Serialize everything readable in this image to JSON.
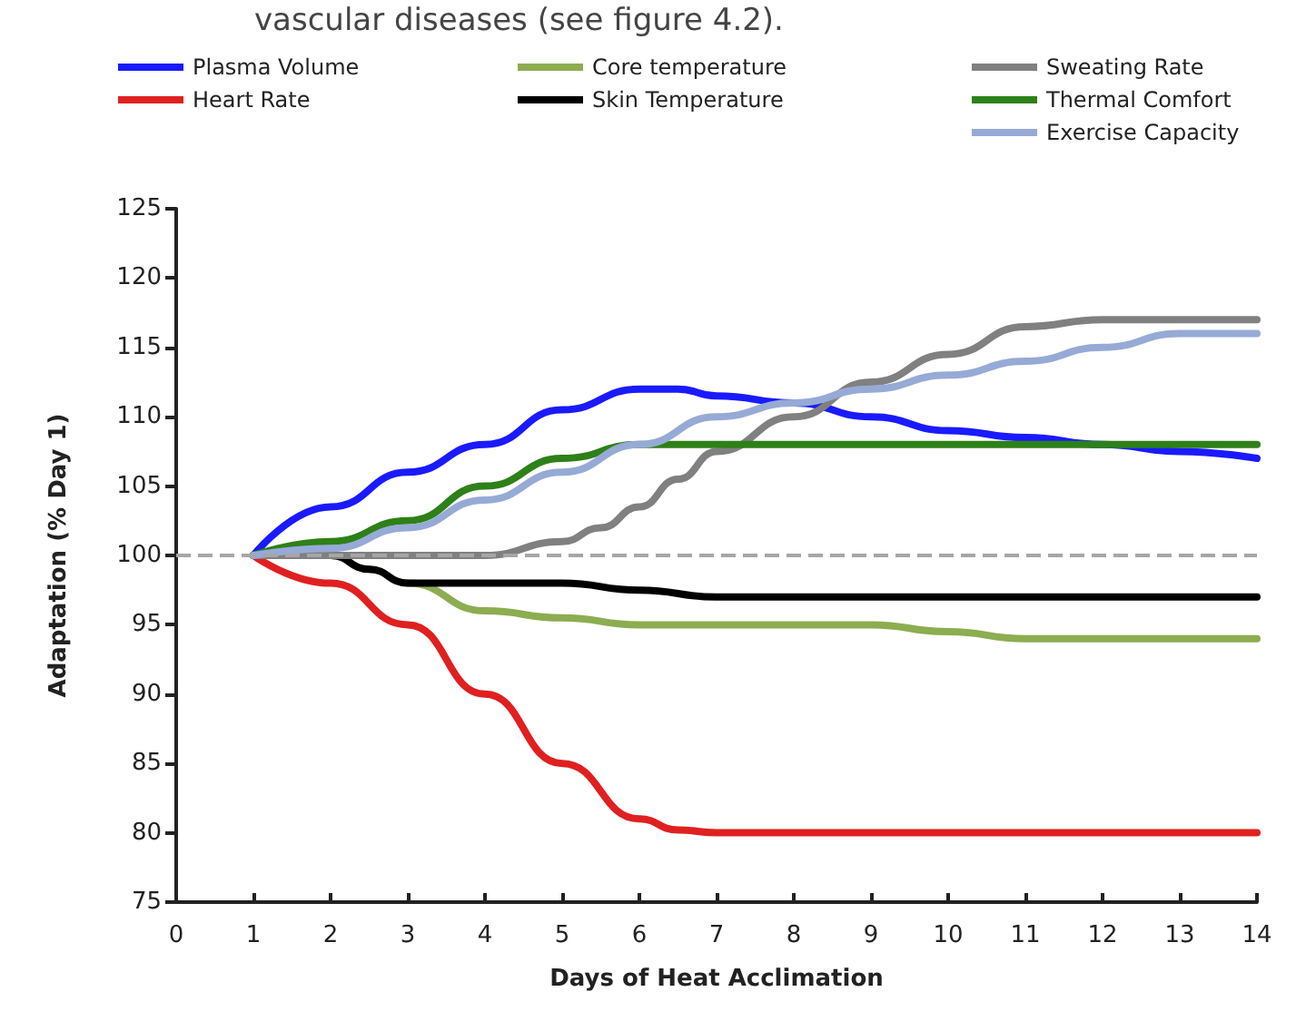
{
  "chart_data": {
    "type": "line",
    "xlabel": "Days of Heat Acclimation",
    "ylabel": "Adaptation (% Day 1)",
    "annotations": [
      "vascular diseases (see figure 4.2)."
    ],
    "xlim": [
      0,
      14
    ],
    "xticks": [
      0,
      1,
      2,
      3,
      4,
      5,
      6,
      7,
      8,
      9,
      10,
      11,
      12,
      13,
      14
    ],
    "ylim": [
      75,
      125
    ],
    "yticks": [
      75,
      80,
      85,
      90,
      95,
      100,
      105,
      110,
      115,
      120,
      125
    ],
    "grid": false,
    "legend": "top",
    "marker": "none",
    "line_style": "solid",
    "ref_lines": [
      {
        "axis": "y",
        "value": 100,
        "color": "#a6a6a6",
        "line_style": "dashed"
      }
    ],
    "series": [
      {
        "name": "Plasma Volume",
        "color": "#1a1aff",
        "x": [
          1,
          2,
          3,
          4,
          5,
          6,
          6.5,
          7,
          8,
          9,
          10,
          11,
          12,
          13,
          14
        ],
        "values": [
          100,
          103.5,
          106,
          108,
          110.5,
          112,
          112,
          111.5,
          111,
          110,
          109,
          108.5,
          108,
          107.5,
          107
        ]
      },
      {
        "name": "Heart Rate",
        "color": "#e02020",
        "x": [
          1,
          2,
          3,
          4,
          5,
          6,
          6.5,
          7,
          8,
          9,
          10,
          11,
          12,
          13,
          14
        ],
        "values": [
          100,
          98,
          95,
          90,
          85,
          81,
          80.2,
          80,
          80,
          80,
          80,
          80,
          80,
          80,
          80
        ]
      },
      {
        "name": "Core temperature",
        "color": "#8cad50",
        "x": [
          1,
          2,
          2.5,
          3,
          4,
          5,
          6,
          7,
          8,
          9,
          10,
          11,
          12,
          13,
          14
        ],
        "values": [
          100,
          100,
          99,
          98,
          96,
          95.5,
          95,
          95,
          95,
          95,
          94.5,
          94,
          94,
          94,
          94
        ]
      },
      {
        "name": "Skin Temperature",
        "color": "#000000",
        "x": [
          1,
          2,
          2.5,
          3,
          4,
          5,
          6,
          7,
          8,
          9,
          10,
          11,
          12,
          13,
          14
        ],
        "values": [
          100,
          100,
          99,
          98,
          98,
          98,
          97.5,
          97,
          97,
          97,
          97,
          97,
          97,
          97,
          97
        ]
      },
      {
        "name": "Sweating Rate",
        "color": "#808080",
        "x": [
          1,
          2,
          3,
          4,
          5,
          5.5,
          6,
          6.5,
          7,
          8,
          9,
          10,
          11,
          12,
          13,
          14
        ],
        "values": [
          100,
          100,
          100,
          100,
          101,
          102,
          103.5,
          105.5,
          107.5,
          110,
          112.5,
          114.5,
          116.5,
          117,
          117,
          117
        ]
      },
      {
        "name": "Thermal Comfort",
        "color": "#2e8018",
        "x": [
          1,
          2,
          3,
          4,
          5,
          6,
          7,
          8,
          9,
          10,
          11,
          12,
          13,
          14
        ],
        "values": [
          100,
          101,
          102.5,
          105,
          107,
          108,
          108,
          108,
          108,
          108,
          108,
          108,
          108,
          108
        ]
      },
      {
        "name": "Exercise Capacity",
        "color": "#96aad6",
        "x": [
          1,
          2,
          3,
          4,
          5,
          6,
          7,
          8,
          9,
          10,
          11,
          12,
          13,
          14
        ],
        "values": [
          100,
          100.5,
          102,
          104,
          106,
          108,
          110,
          111,
          112,
          113,
          114,
          115,
          116,
          116
        ]
      }
    ]
  }
}
